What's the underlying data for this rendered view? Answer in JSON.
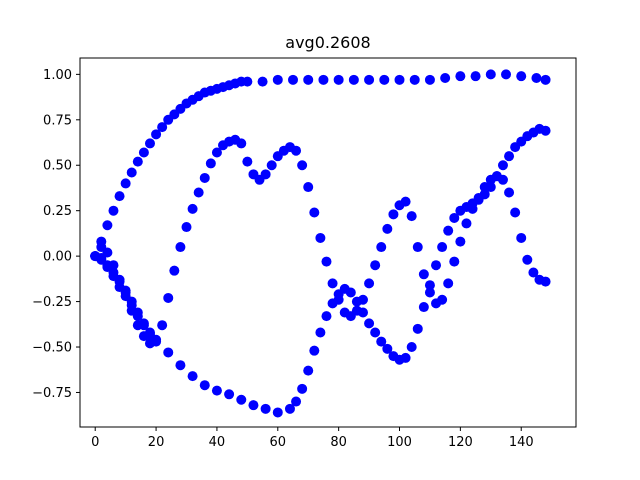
{
  "chart_data": {
    "type": "scatter",
    "title": "avg0.2608",
    "xlabel": "",
    "ylabel": "",
    "xlim": [
      -5,
      158
    ],
    "ylim": [
      -0.94,
      1.09
    ],
    "xticks": [
      0,
      20,
      40,
      60,
      80,
      100,
      120,
      140
    ],
    "yticks": [
      -0.75,
      -0.5,
      -0.25,
      0.0,
      0.25,
      0.5,
      0.75,
      1.0
    ],
    "ytick_labels": [
      "−0.75",
      "−0.50",
      "−0.25",
      "0.00",
      "0.25",
      "0.50",
      "0.75",
      "1.00"
    ],
    "grid": false,
    "marker_color": "#0000ff",
    "series": [
      {
        "x": [
          0,
          2,
          4,
          6,
          8,
          10,
          12,
          14,
          16,
          18,
          20,
          22,
          24,
          26,
          28,
          30,
          32,
          34,
          36,
          38,
          40,
          42,
          44,
          46,
          48,
          50,
          55,
          60,
          65,
          70,
          75,
          80,
          85,
          90,
          95,
          100,
          105,
          110,
          115,
          120,
          125,
          130,
          135,
          140,
          145,
          148
        ],
        "y": [
          0,
          0.08,
          0.17,
          0.25,
          0.33,
          0.4,
          0.46,
          0.52,
          0.57,
          0.62,
          0.67,
          0.71,
          0.75,
          0.78,
          0.81,
          0.84,
          0.86,
          0.88,
          0.9,
          0.91,
          0.92,
          0.93,
          0.94,
          0.95,
          0.96,
          0.96,
          0.96,
          0.97,
          0.97,
          0.97,
          0.97,
          0.97,
          0.97,
          0.97,
          0.97,
          0.97,
          0.97,
          0.97,
          0.98,
          0.99,
          0.99,
          1.0,
          1.0,
          0.99,
          0.98,
          0.97
        ]
      },
      {
        "x": [
          0,
          2,
          4,
          6,
          8,
          10,
          12,
          14,
          16,
          18,
          20,
          24,
          28,
          32,
          36,
          40,
          44,
          48,
          52,
          56,
          60,
          64,
          66,
          68,
          70,
          72,
          74,
          76,
          78,
          80,
          82,
          84,
          86,
          88,
          90,
          92,
          94,
          96,
          98,
          100,
          102,
          104,
          106,
          108,
          110,
          112,
          114,
          116,
          118,
          120,
          122,
          124,
          126,
          128,
          130,
          132,
          134,
          136,
          138,
          140,
          142,
          144,
          146,
          148
        ],
        "y": [
          0,
          -0.02,
          -0.06,
          -0.11,
          -0.17,
          -0.22,
          -0.27,
          -0.33,
          -0.38,
          -0.42,
          -0.46,
          -0.53,
          -0.6,
          -0.66,
          -0.71,
          -0.74,
          -0.76,
          -0.79,
          -0.82,
          -0.84,
          -0.86,
          -0.84,
          -0.8,
          -0.73,
          -0.63,
          -0.52,
          -0.42,
          -0.33,
          -0.26,
          -0.21,
          -0.18,
          -0.2,
          -0.25,
          -0.31,
          -0.37,
          -0.42,
          -0.47,
          -0.51,
          -0.55,
          -0.57,
          -0.56,
          -0.5,
          -0.4,
          -0.28,
          -0.16,
          -0.05,
          0.05,
          0.14,
          0.21,
          0.25,
          0.27,
          0.29,
          0.31,
          0.34,
          0.38,
          0.44,
          0.5,
          0.55,
          0.6,
          0.63,
          0.66,
          0.68,
          0.7,
          0.69
        ]
      },
      {
        "x": [
          0,
          2,
          4,
          6,
          8,
          10,
          12,
          14,
          16,
          18,
          20,
          22,
          24,
          26,
          28,
          30,
          32,
          34,
          36,
          38,
          40,
          42,
          44,
          46,
          48,
          50,
          52,
          54,
          56,
          58,
          60,
          62,
          64,
          66,
          68,
          70,
          72,
          74,
          76,
          78,
          80,
          82,
          84,
          86,
          88,
          90,
          92,
          94,
          96,
          98,
          100,
          102,
          104,
          106,
          108,
          110,
          112,
          114,
          116,
          118,
          120,
          122,
          124,
          126,
          128,
          130,
          132,
          134,
          136,
          138,
          140,
          142,
          144,
          146,
          148
        ],
        "y": [
          0,
          -0.01,
          -0.05,
          -0.09,
          -0.14,
          -0.19,
          -0.25,
          -0.31,
          -0.37,
          -0.43,
          -0.47,
          -0.38,
          -0.23,
          -0.08,
          0.05,
          0.16,
          0.26,
          0.35,
          0.43,
          0.51,
          0.57,
          0.61,
          0.63,
          0.64,
          0.62,
          0.52,
          0.45,
          0.42,
          0.45,
          0.5,
          0.55,
          0.58,
          0.6,
          0.58,
          0.5,
          0.38,
          0.24,
          0.1,
          -0.03,
          -0.15,
          -0.24,
          -0.31,
          -0.33,
          -0.3,
          -0.24,
          -0.15,
          -0.05,
          0.05,
          0.15,
          0.23,
          0.28,
          0.3,
          0.22,
          0.05,
          -0.1,
          -0.2,
          -0.26,
          -0.24,
          -0.15,
          -0.03,
          0.08,
          0.18,
          0.26,
          0.32,
          0.38,
          0.42,
          0.44,
          0.42,
          0.35,
          0.24,
          0.1,
          -0.02,
          -0.09,
          -0.13,
          -0.14
        ]
      },
      {
        "x": [
          0,
          2,
          4,
          6,
          8,
          10,
          12,
          14,
          16,
          18
        ],
        "y": [
          0,
          0.05,
          0.02,
          -0.05,
          -0.13,
          -0.2,
          -0.3,
          -0.38,
          -0.44,
          -0.48
        ]
      }
    ]
  }
}
